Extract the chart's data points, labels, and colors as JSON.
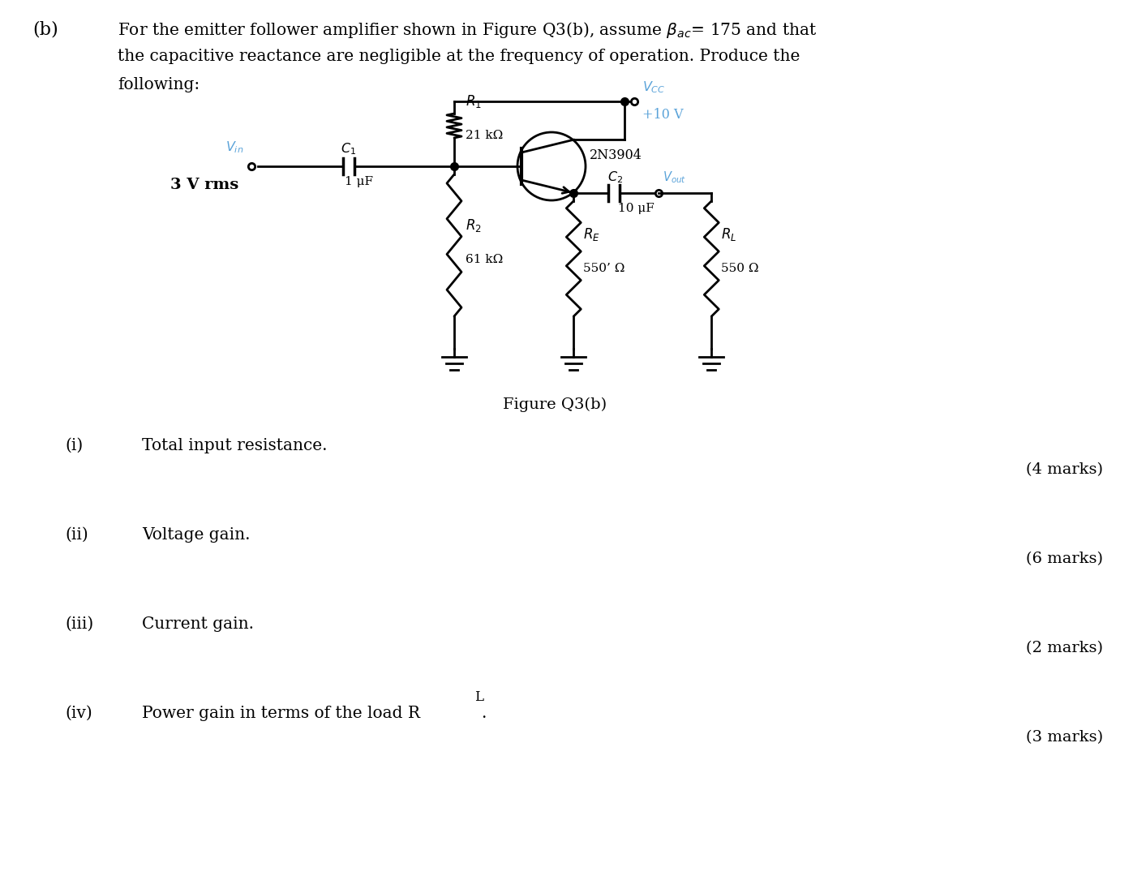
{
  "background_color": "#ffffff",
  "text_color": "#000000",
  "blue_color": "#5ba3d9",
  "header_b": "(b)",
  "header_line1": "For the emitter follower amplifier shown in Figure Q3(b), assume βac = 175 and that",
  "header_line2": "the capacitive reactance are negligible at the frequency of operation. Produce the",
  "header_line3": "following:",
  "figure_caption": "Figure Q3(b)",
  "items": [
    {
      "label": "(i)",
      "text": "Total input resistance.",
      "marks": "(4 marks)"
    },
    {
      "label": "(ii)",
      "text": "Voltage gain.",
      "marks": "(6 marks)"
    },
    {
      "label": "(iii)",
      "text": "Current gain.",
      "marks": "(2 marks)"
    },
    {
      "label": "(iv)",
      "text": "Power gain in terms of the load RL.",
      "marks": "(3 marks)"
    }
  ],
  "R1_value": "21 kΩ",
  "R2_value": "61 kΩ",
  "RE_value": "550’ Ω",
  "RL_value": "550 Ω",
  "C1_value": "1 μF",
  "C2_value": "10 μF",
  "transistor_label": "2N3904",
  "Vin_value": "3 V rms",
  "Vcc_value": "+10 V"
}
